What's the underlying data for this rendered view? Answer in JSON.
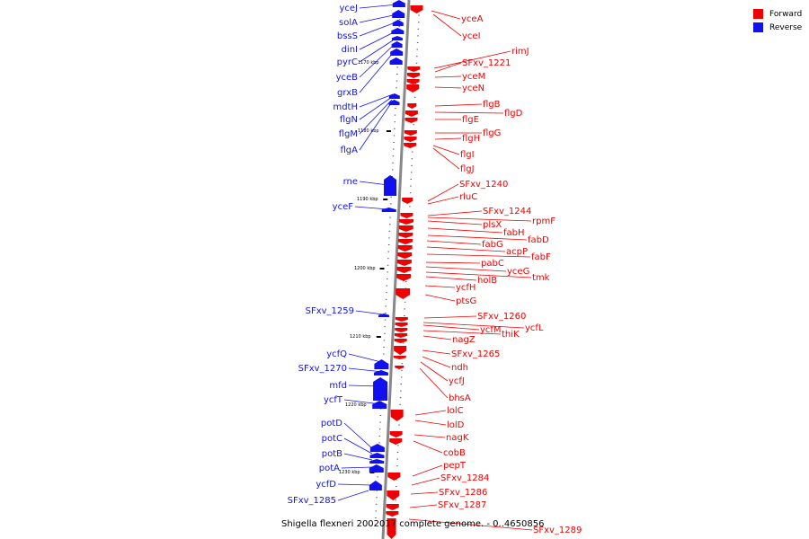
{
  "caption": "Shigella flexneri 2002017 complete genome. - 0..4650856",
  "legend": [
    {
      "label": "Forward",
      "color": "#ee0000"
    },
    {
      "label": "Reverse",
      "color": "#1111ee"
    }
  ],
  "colors": {
    "forward": "#ee0000",
    "reverse": "#1111ee",
    "backbone": "#888888"
  },
  "ticks": [
    "1170 kbp",
    "1180 kbp",
    "1190 kbp",
    "1200 kbp",
    "1210 kbp",
    "1220 kbp",
    "1230 kbp"
  ],
  "reverse_labels": [
    "yceJ",
    "solA",
    "bssS",
    "dinI",
    "pyrC",
    "yceB",
    "grxB",
    "mdtH",
    "flgN",
    "flgM",
    "flgA",
    "rne",
    "yceF",
    "SFxv_1259",
    "ycfQ",
    "SFxv_1270",
    "mfd",
    "ycfT",
    "potD",
    "potC",
    "potB",
    "potA",
    "ycfD",
    "SFxv_1285"
  ],
  "forward_labels": [
    "yceA",
    "yceI",
    "rimJ",
    "SFxv_1221",
    "yceM",
    "yceN",
    "flgB",
    "flgD",
    "flgE",
    "flgG",
    "flgH",
    "flgI",
    "flgJ",
    "SFxv_1240",
    "rluC",
    "SFxv_1244",
    "rpmF",
    "plsX",
    "fabH",
    "fabD",
    "fabG",
    "acpP",
    "fabF",
    "pabC",
    "yceG",
    "tmk",
    "holB",
    "ycfH",
    "ptsG",
    "SFxv_1260",
    "ycfL",
    "ycfM",
    "thiK",
    "nagZ",
    "SFxv_1265",
    "ndh",
    "ycfJ",
    "bhsA",
    "lolC",
    "lolD",
    "nagK",
    "cobB",
    "pepT",
    "SFxv_1284",
    "SFxv_1286",
    "SFxv_1287",
    "SFxv_1289"
  ]
}
